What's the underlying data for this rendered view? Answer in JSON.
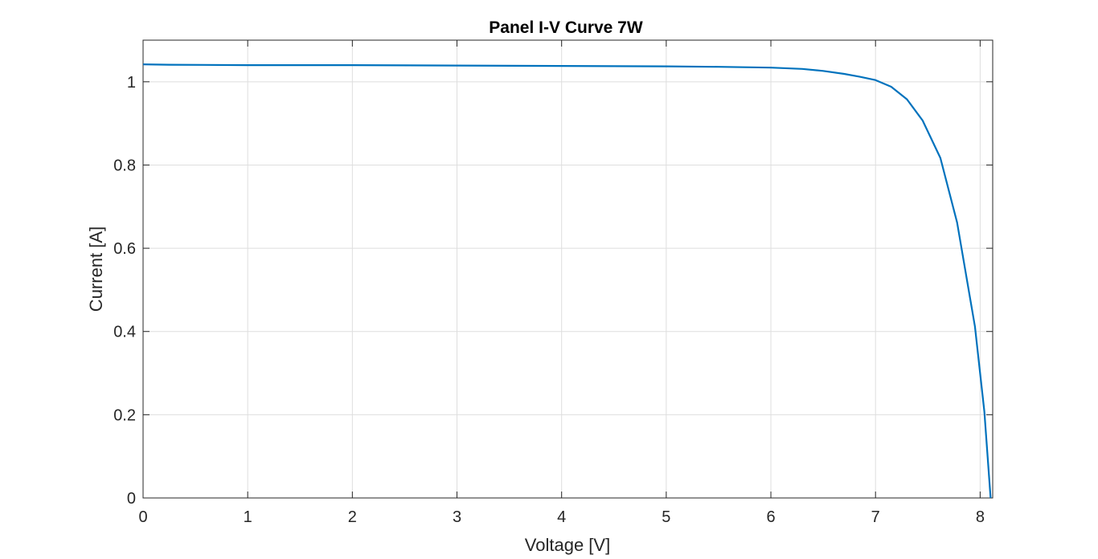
{
  "chart_data": {
    "type": "line",
    "title": "Panel I-V Curve 7W",
    "xlabel": "Voltage [V]",
    "ylabel": "Current [A]",
    "xlim": [
      0,
      8.12
    ],
    "ylim": [
      0,
      1.1
    ],
    "xticks": [
      "0",
      "1",
      "2",
      "3",
      "4",
      "5",
      "6",
      "7",
      "8"
    ],
    "yticks": [
      "0",
      "0.2",
      "0.4",
      "0.6",
      "0.8",
      "1"
    ],
    "grid": true,
    "series": [
      {
        "color": "#0072BD",
        "x": [
          0,
          0.25,
          1,
          2,
          3,
          4,
          5,
          5.5,
          6,
          6.3,
          6.5,
          6.7,
          6.85,
          7.0,
          7.15,
          7.3,
          7.45,
          7.62,
          7.78,
          7.95,
          8.04,
          8.1
        ],
        "y": [
          1.042,
          1.041,
          1.04,
          1.04,
          1.039,
          1.038,
          1.037,
          1.036,
          1.034,
          1.031,
          1.026,
          1.019,
          1.012,
          1.004,
          0.988,
          0.958,
          0.907,
          0.817,
          0.662,
          0.412,
          0.208,
          0
        ]
      }
    ]
  }
}
